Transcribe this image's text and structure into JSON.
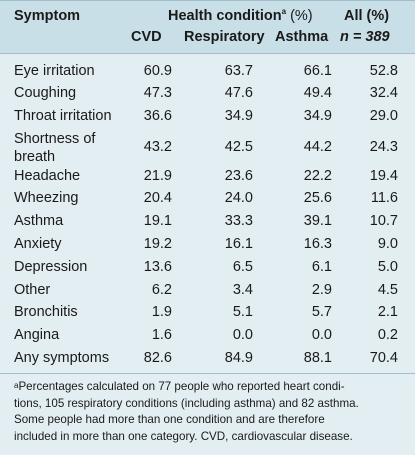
{
  "header": {
    "symptom": "Symptom",
    "health_condition": "Health condition",
    "health_condition_sup": "a",
    "health_condition_unit": " (%)",
    "all_label": "All (%)",
    "n_label": "n = 389",
    "cols": [
      "CVD",
      "Respiratory",
      "Asthma"
    ]
  },
  "rows": [
    {
      "label": "Eye irritation",
      "cvd": "60.9",
      "resp": "63.7",
      "asthma": "66.1",
      "all": "52.8"
    },
    {
      "label": "Coughing",
      "cvd": "47.3",
      "resp": "47.6",
      "asthma": "49.4",
      "all": "32.4"
    },
    {
      "label": "Throat irritation",
      "cvd": "36.6",
      "resp": "34.9",
      "asthma": "34.9",
      "all": "29.0"
    },
    {
      "label": "Shortness of",
      "label2": "breath",
      "cvd": "43.2",
      "resp": "42.5",
      "asthma": "44.2",
      "all": "24.3"
    },
    {
      "label": "Headache",
      "cvd": "21.9",
      "resp": "23.6",
      "asthma": "22.2",
      "all": "19.4"
    },
    {
      "label": "Wheezing",
      "cvd": "20.4",
      "resp": "24.0",
      "asthma": "25.6",
      "all": "11.6"
    },
    {
      "label": "Asthma",
      "cvd": "19.1",
      "resp": "33.3",
      "asthma": "39.1",
      "all": "10.7"
    },
    {
      "label": "Anxiety",
      "cvd": "19.2",
      "resp": "16.1",
      "asthma": "16.3",
      "all": "9.0"
    },
    {
      "label": "Depression",
      "cvd": "13.6",
      "resp": "6.5",
      "asthma": "6.1",
      "all": "5.0"
    },
    {
      "label": "Other",
      "cvd": "6.2",
      "resp": "3.4",
      "asthma": "2.9",
      "all": "4.5"
    },
    {
      "label": "Bronchitis",
      "cvd": "1.9",
      "resp": "5.1",
      "asthma": "5.7",
      "all": "2.1"
    },
    {
      "label": "Angina",
      "cvd": "1.6",
      "resp": "0.0",
      "asthma": "0.0",
      "all": "0.2"
    },
    {
      "label": "Any symptoms",
      "cvd": "82.6",
      "resp": "84.9",
      "asthma": "88.1",
      "all": "70.4"
    }
  ],
  "footnote": {
    "sup": "a",
    "lines": [
      "Percentages calculated on 77 people who reported heart condi-",
      "tions, 105 respiratory conditions (including asthma) and 82 asthma.",
      "Some people had more than one condition and are therefore",
      "included in more than one category. CVD, cardiovascular disease."
    ]
  }
}
